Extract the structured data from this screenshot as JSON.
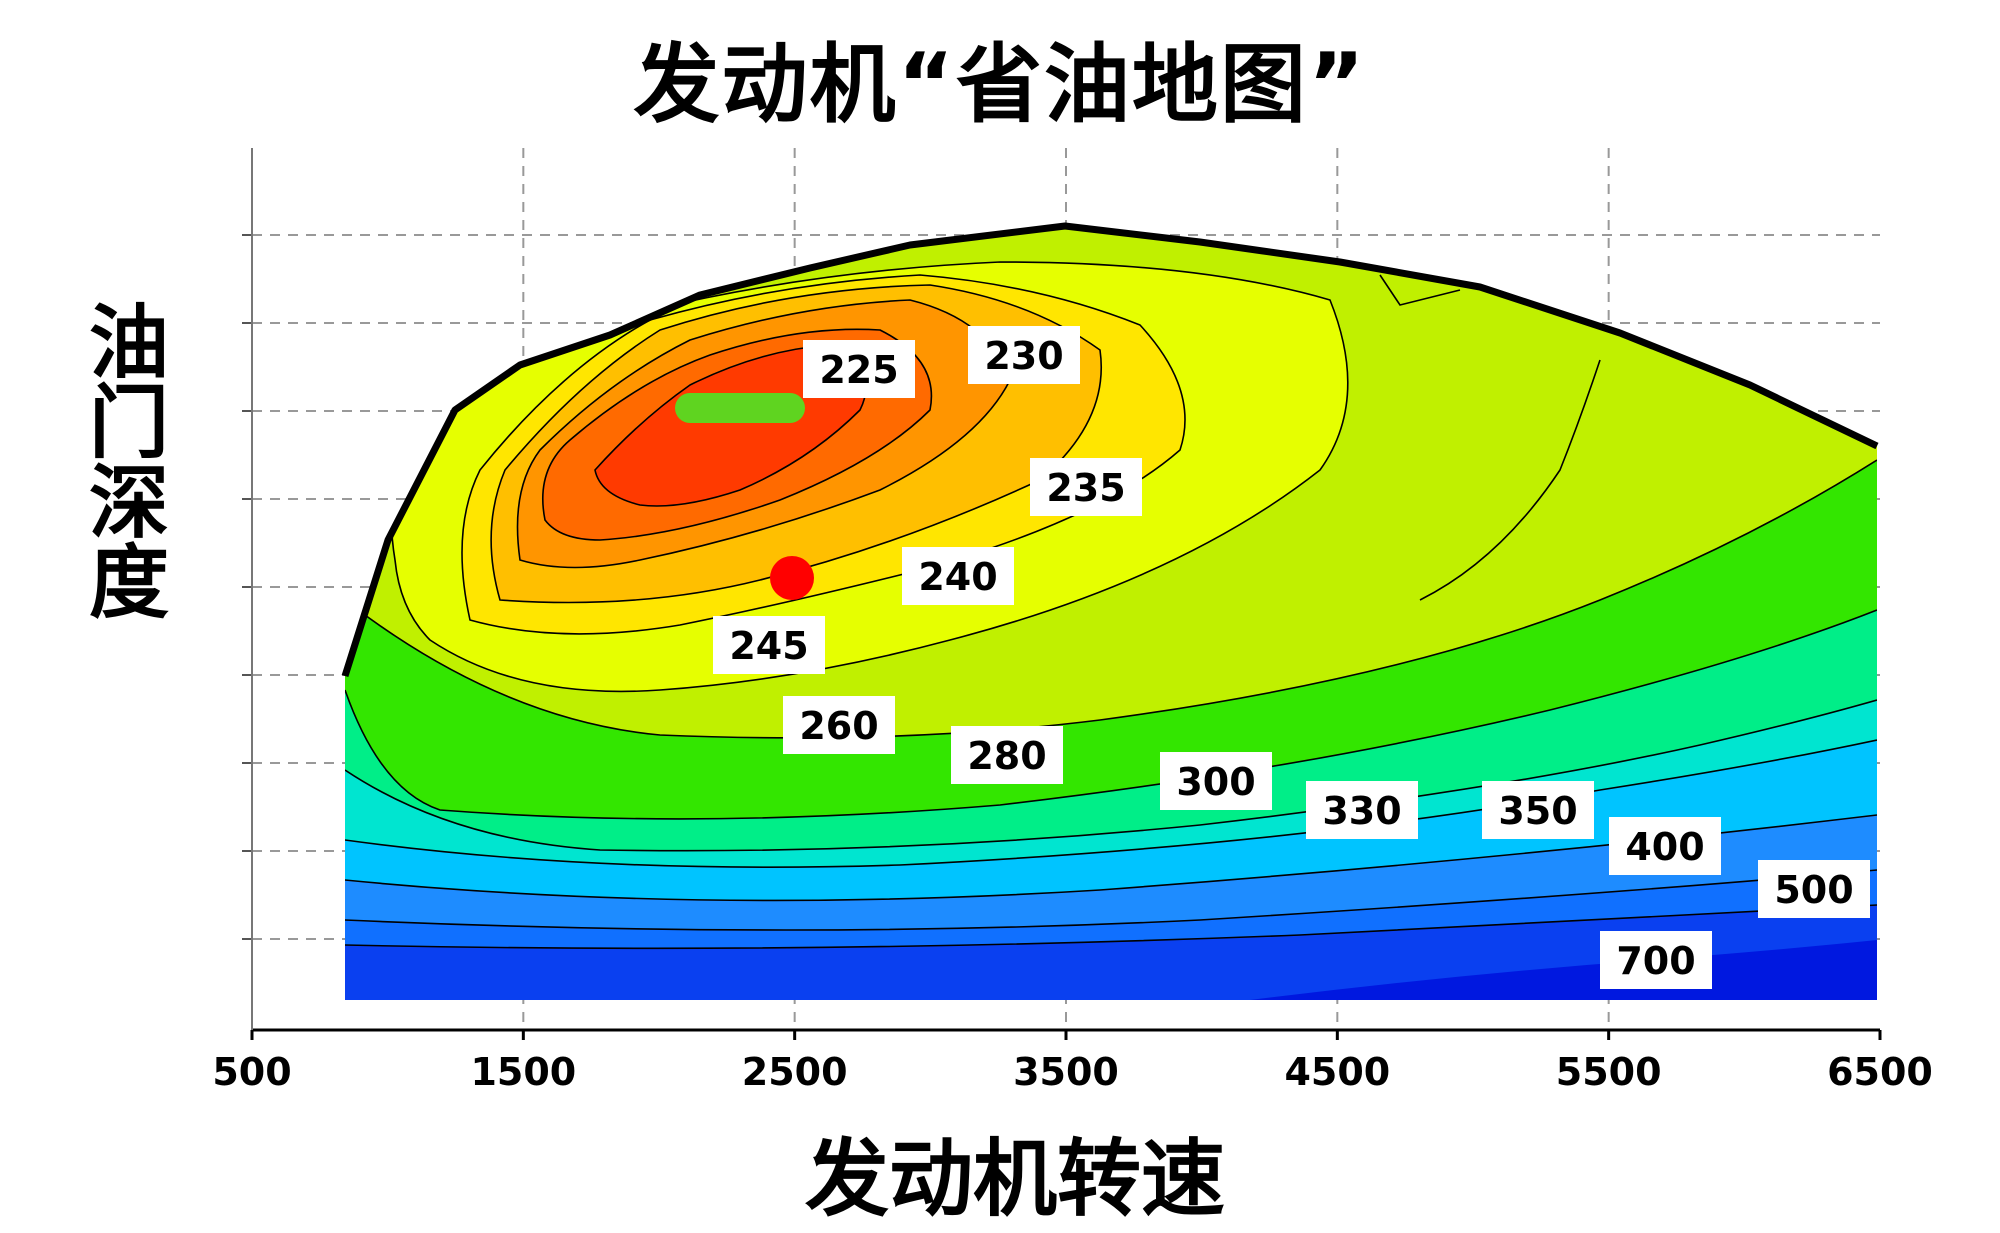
{
  "chart_data": {
    "type": "heatmap",
    "title": "发动机“省油地图”",
    "xlabel": "发动机转速",
    "ylabel": "油门深度",
    "x_ticks": [
      "500",
      "1500",
      "2500",
      "3500",
      "4500",
      "5500",
      "6500"
    ],
    "xlim": [
      500,
      6500
    ],
    "grid": true,
    "contours": [
      {
        "level": "225",
        "color": "#ff3a00"
      },
      {
        "level": "230",
        "color": "#ff6a00"
      },
      {
        "level": "235",
        "color": "#ff9500"
      },
      {
        "level": "240",
        "color": "#ffbf00"
      },
      {
        "level": "245",
        "color": "#ffe600"
      },
      {
        "level": "260",
        "color": "#e6ff00"
      },
      {
        "level": "280",
        "color": "#c0f000"
      },
      {
        "level": "300",
        "color": "#33e600"
      },
      {
        "level": "330",
        "color": "#00ee88"
      },
      {
        "level": "350",
        "color": "#00e5d0"
      },
      {
        "level": "400",
        "color": "#00c4ff"
      },
      {
        "level": "500",
        "color": "#1e8cff"
      },
      {
        "level": "700",
        "color": "#0a40f0"
      }
    ],
    "markers": [
      {
        "type": "segment",
        "color": "#5fd420",
        "x": [
          2100,
          2500
        ]
      },
      {
        "type": "point",
        "color": "#ff0000",
        "x": 2480
      }
    ]
  }
}
